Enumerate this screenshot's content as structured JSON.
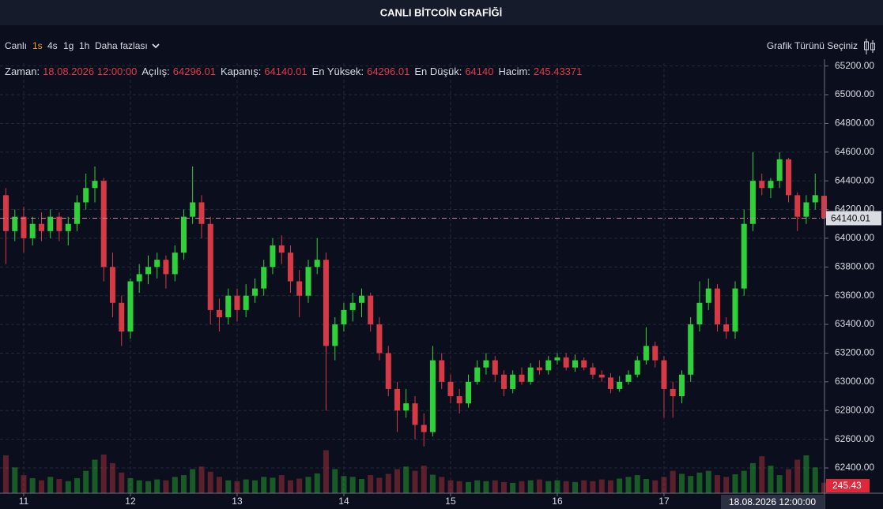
{
  "chart_data": {
    "type": "candlestick",
    "title": "CANLI BİTCOİN GRAFİĞİ",
    "toolbar": {
      "live": "Canlı",
      "intervals": [
        "1s",
        "4s",
        "1g",
        "1h"
      ],
      "active_interval": 0,
      "more": "Daha fazlası",
      "chart_type": "Grafik Türünü Seçiniz"
    },
    "info_labels": [
      "Zaman:",
      "Açılış:",
      "Kapanış:",
      "En Yüksek:",
      "En Düşük:",
      "Hacim:"
    ],
    "crosshair_time": "18.08.2026 12:00:00",
    "volume_label": "245.43",
    "x": [
      10.833,
      10.917,
      11,
      11.083,
      11.167,
      11.25,
      11.333,
      11.417,
      11.5,
      11.583,
      11.667,
      11.75,
      11.833,
      11.917,
      12,
      12.083,
      12.167,
      12.25,
      12.333,
      12.417,
      12.5,
      12.583,
      12.667,
      12.75,
      12.833,
      12.917,
      13,
      13.083,
      13.167,
      13.25,
      13.333,
      13.417,
      13.5,
      13.583,
      13.667,
      13.75,
      13.833,
      13.917,
      14,
      14.083,
      14.167,
      14.25,
      14.333,
      14.417,
      14.5,
      14.583,
      14.667,
      14.75,
      14.833,
      14.917,
      15,
      15.083,
      15.167,
      15.25,
      15.333,
      15.417,
      15.5,
      15.583,
      15.667,
      15.75,
      15.833,
      15.917,
      16,
      16.083,
      16.167,
      16.25,
      16.333,
      16.417,
      16.5,
      16.583,
      16.667,
      16.75,
      16.833,
      16.917,
      17,
      17.083,
      17.167,
      17.25,
      17.333,
      17.417,
      17.5,
      17.583,
      17.667,
      17.75,
      17.833,
      17.917,
      18,
      18.083,
      18.167,
      18.25,
      18.333,
      18.417,
      18.5
    ],
    "open": [
      64300,
      64050,
      64150,
      64000,
      64100,
      64050,
      64150,
      64050,
      64100,
      64250,
      64350,
      64400,
      63800,
      63550,
      63350,
      63700,
      63750,
      63800,
      63850,
      63750,
      63900,
      64150,
      64250,
      64100,
      63500,
      63450,
      63600,
      63500,
      63600,
      63650,
      63800,
      63950,
      63900,
      63700,
      63600,
      63800,
      63850,
      63250,
      63400,
      63500,
      63550,
      63600,
      63400,
      63200,
      62950,
      62800,
      62850,
      62700,
      62650,
      63150,
      63000,
      62900,
      62850,
      63000,
      63100,
      63150,
      63050,
      62950,
      63050,
      63000,
      63100,
      63080,
      63150,
      63170,
      63100,
      63150,
      63100,
      63050,
      63030,
      62950,
      63000,
      63050,
      63150,
      63250,
      63150,
      62950,
      62900,
      63050,
      63400,
      63550,
      63650,
      63400,
      63350,
      63650,
      64100,
      64400,
      64350,
      64400,
      64550,
      64300,
      64150,
      64250,
      64296.01
    ],
    "high": [
      64350,
      64200,
      64220,
      64150,
      64180,
      64200,
      64180,
      64150,
      64300,
      64450,
      64500,
      64420,
      63900,
      63600,
      63720,
      63820,
      63880,
      63900,
      63880,
      63950,
      64200,
      64500,
      64300,
      64150,
      63580,
      63650,
      63650,
      63680,
      63720,
      63850,
      64000,
      64020,
      63950,
      63780,
      63850,
      64000,
      63900,
      63450,
      63550,
      63620,
      63650,
      63620,
      63450,
      63250,
      63000,
      62950,
      62900,
      62780,
      63250,
      63200,
      63050,
      62950,
      63050,
      63150,
      63200,
      63180,
      63080,
      63080,
      63100,
      63130,
      63150,
      63180,
      63200,
      63200,
      63190,
      63170,
      63130,
      63080,
      63060,
      63040,
      63080,
      63180,
      63380,
      63280,
      63180,
      63000,
      63080,
      63450,
      63700,
      63720,
      63680,
      63450,
      63700,
      64200,
      64600,
      64450,
      64420,
      64600,
      64560,
      64320,
      64300,
      64450,
      64296.01
    ],
    "low": [
      63820,
      63980,
      63900,
      63950,
      63980,
      64000,
      63980,
      63950,
      64050,
      64200,
      64250,
      63700,
      63450,
      63250,
      63300,
      63620,
      63680,
      63720,
      63650,
      63700,
      63850,
      64100,
      64000,
      63400,
      63350,
      63400,
      63420,
      63450,
      63550,
      63600,
      63750,
      63820,
      63620,
      63450,
      63550,
      63750,
      62800,
      63150,
      63350,
      63420,
      63450,
      63350,
      63150,
      62900,
      62650,
      62750,
      62600,
      62550,
      62620,
      62950,
      62850,
      62780,
      62820,
      62980,
      63050,
      63000,
      62900,
      62920,
      62980,
      62980,
      63050,
      63050,
      63120,
      63080,
      63070,
      63080,
      63020,
      63000,
      62920,
      62930,
      62980,
      63030,
      63120,
      63100,
      62750,
      62750,
      62850,
      63000,
      63350,
      63500,
      63350,
      63300,
      63300,
      63600,
      64050,
      64300,
      64280,
      64350,
      64250,
      64050,
      64100,
      64200,
      64140
    ],
    "close": [
      64050,
      64150,
      64000,
      64100,
      64050,
      64150,
      64050,
      64100,
      64250,
      64350,
      64400,
      63800,
      63550,
      63350,
      63700,
      63750,
      63800,
      63850,
      63750,
      63900,
      64150,
      64250,
      64100,
      63500,
      63450,
      63600,
      63500,
      63600,
      63650,
      63800,
      63950,
      63900,
      63700,
      63600,
      63800,
      63850,
      63250,
      63400,
      63500,
      63550,
      63600,
      63400,
      63200,
      62950,
      62800,
      62850,
      62700,
      62650,
      63150,
      63000,
      62900,
      62850,
      63000,
      63100,
      63150,
      63050,
      62950,
      63050,
      63000,
      63100,
      63080,
      63150,
      63170,
      63100,
      63150,
      63100,
      63050,
      63030,
      62950,
      63000,
      63050,
      63150,
      63250,
      63150,
      62950,
      62900,
      63050,
      63400,
      63550,
      63650,
      63400,
      63350,
      63650,
      64100,
      64400,
      64350,
      64400,
      64550,
      64300,
      64150,
      64250,
      64300,
      64140.01
    ],
    "volume": [
      880,
      600,
      420,
      350,
      300,
      380,
      330,
      280,
      350,
      520,
      780,
      900,
      700,
      480,
      350,
      300,
      280,
      320,
      300,
      380,
      420,
      560,
      620,
      500,
      380,
      300,
      280,
      320,
      300,
      380,
      360,
      420,
      300,
      340,
      380,
      460,
      1000,
      560,
      400,
      380,
      330,
      420,
      360,
      450,
      560,
      620,
      520,
      640,
      430,
      380,
      300,
      280,
      260,
      300,
      280,
      300,
      260,
      240,
      280,
      300,
      320,
      280,
      300,
      280,
      260,
      300,
      280,
      320,
      300,
      340,
      380,
      420,
      330,
      300,
      380,
      520,
      450,
      400,
      480,
      520,
      420,
      380,
      440,
      520,
      700,
      860,
      640,
      420,
      560,
      780,
      880,
      600,
      245.43371
    ],
    "up_color": "#2fd03a",
    "down_color": "#d63a45",
    "xlim": [
      10.778,
      18.504
    ],
    "xticks": [
      11,
      12,
      13,
      14,
      15,
      16,
      17
    ],
    "ylim": [
      62224,
      65220
    ],
    "yticks": [
      {
        "value": 62400,
        "label": "62400.00"
      },
      {
        "value": 62600,
        "label": "62600.00"
      },
      {
        "value": 62800,
        "label": "62800.00"
      },
      {
        "value": 63000,
        "label": "63000.00"
      },
      {
        "value": 63200,
        "label": "63200.00"
      },
      {
        "value": 63400,
        "label": "63400.00"
      },
      {
        "value": 63600,
        "label": "63600.00"
      },
      {
        "value": 63800,
        "label": "63800.00"
      },
      {
        "value": 64000,
        "label": "64000.00"
      },
      {
        "value": 64200,
        "label": "64200.00"
      },
      {
        "value": 64400,
        "label": "64400.00"
      },
      {
        "value": 64600,
        "label": "64600.00"
      },
      {
        "value": 64800,
        "label": "64800.00"
      },
      {
        "value": 65000,
        "label": "65000.00"
      },
      {
        "value": 65200,
        "label": "65200.00"
      }
    ],
    "y2lim": [
      0,
      10000
    ],
    "grid": true
  }
}
